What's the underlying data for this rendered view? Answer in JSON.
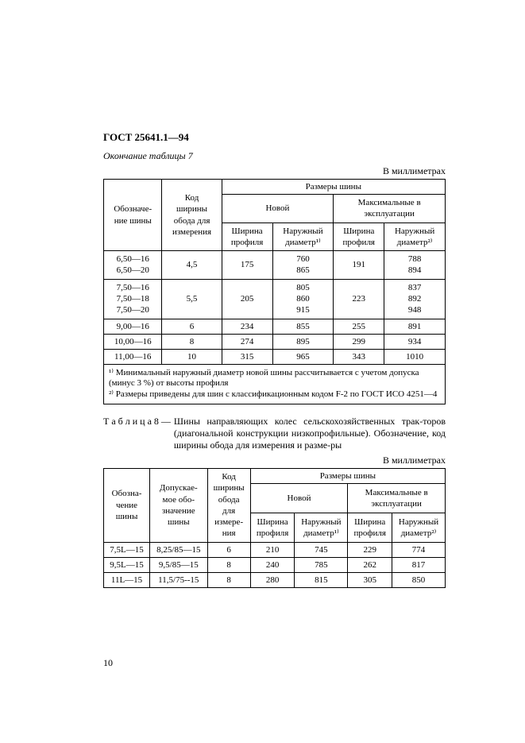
{
  "header": {
    "doc_id": "ГОСТ 25641.1—94",
    "subtitle": "Окончание таблицы 7",
    "units": "В миллиметрах"
  },
  "table7": {
    "cols": {
      "designation": "Обозначе-\nние шины",
      "rim_code": "Код\nширины\nобода для\nизмерения",
      "sizes": "Размеры шины",
      "new": "Новой",
      "max": "Максимальные в\nэксплуатации",
      "width": "Ширина\nпрофиля",
      "diam_new": "Наружный\nдиаметр¹⁾",
      "diam_max": "Наружный\nдиаметр²⁾"
    },
    "rows": [
      {
        "desig": "6,50—16\n6,50—20",
        "rim": "4,5",
        "w_new": "175",
        "d_new": "760\n865",
        "w_max": "191",
        "d_max": "788\n894"
      },
      {
        "desig": "7,50—16\n7,50—18\n7,50—20",
        "rim": "5,5",
        "w_new": "205",
        "d_new": "805\n860\n915",
        "w_max": "223",
        "d_max": "837\n892\n948"
      },
      {
        "desig": "9,00—16",
        "rim": "6",
        "w_new": "234",
        "d_new": "855",
        "w_max": "255",
        "d_max": "891"
      },
      {
        "desig": "10,00—16",
        "rim": "8",
        "w_new": "274",
        "d_new": "895",
        "w_max": "299",
        "d_max": "934"
      },
      {
        "desig": "11,00—16",
        "rim": "10",
        "w_new": "315",
        "d_new": "965",
        "w_max": "343",
        "d_max": "1010"
      }
    ],
    "footnote": "¹⁾ Минимальный наружный диаметр новой шины рассчитывается с учетом допуска (минус 3 %) от высоты профиля\n²⁾ Размеры приведены для шин с классификационным кодом F-2 по ГОСТ ИСО 4251—4"
  },
  "table8": {
    "title_label": "Т а б л и ц а  8 —",
    "title_text": "Шины направляющих колес сельскохозяйственных трак-торов (диагональной конструкции низкопрофильные). Обозначение, код ширины обода для измерения и разме-ры",
    "units": "В миллиметрах",
    "cols": {
      "designation": "Обозна-\nчение\nшины",
      "allowed": "Допускае-\nмое обо-\nзначение\nшины",
      "rim_code": "Код\nширины\nобода\nдля\nизмере-\nния",
      "sizes": "Размеры шины",
      "new": "Новой",
      "max": "Максимальные в\nэксплуатации",
      "width": "Ширина\nпрофиля",
      "diam_new": "Наружный\nдиаметр¹⁾",
      "diam_max": "Наружный\nдиаметр²⁾"
    },
    "rows": [
      {
        "desig": "7,5L—15",
        "allowed": "8,25/85—15",
        "rim": "6",
        "w_new": "210",
        "d_new": "745",
        "w_max": "229",
        "d_max": "774"
      },
      {
        "desig": "9,5L—15",
        "allowed": "9,5/85—15",
        "rim": "8",
        "w_new": "240",
        "d_new": "785",
        "w_max": "262",
        "d_max": "817"
      },
      {
        "desig": "11L—15",
        "allowed": "11,5/75--15",
        "rim": "8",
        "w_new": "280",
        "d_new": "815",
        "w_max": "305",
        "d_max": "850"
      }
    ]
  },
  "page_number": "10"
}
